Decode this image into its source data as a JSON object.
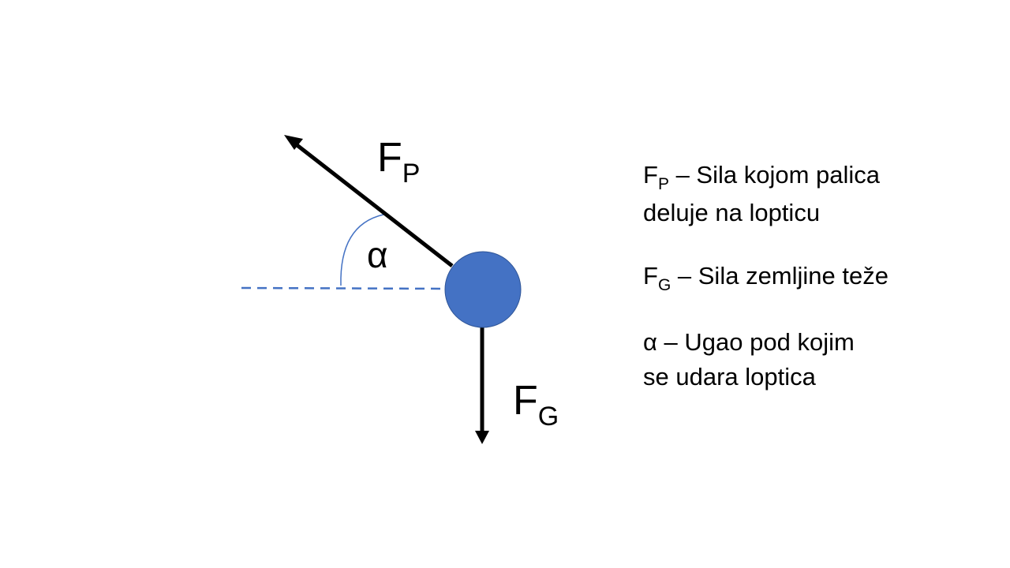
{
  "labels": {
    "fp": {
      "symbol": "F",
      "subscript": "P"
    },
    "fg": {
      "symbol": "F",
      "subscript": "G"
    },
    "alpha": "α"
  },
  "legend": [
    {
      "symbol": "F",
      "subscript": "P",
      "text": "– Sila kojom palica",
      "text2": "deluje na lopticu"
    },
    {
      "symbol": "F",
      "subscript": "G",
      "text": "– Sila zemljine teže",
      "text2": ""
    },
    {
      "symbol": "α",
      "subscript": "",
      "text": "– Ugao pod kojim",
      "text2": "se udara loptica"
    }
  ],
  "colors": {
    "ball": "#4472C4",
    "ball_stroke": "#2F5597",
    "dashed_line": "#4472C4",
    "angle_arc": "#4472C4",
    "arrows": "#000000"
  }
}
